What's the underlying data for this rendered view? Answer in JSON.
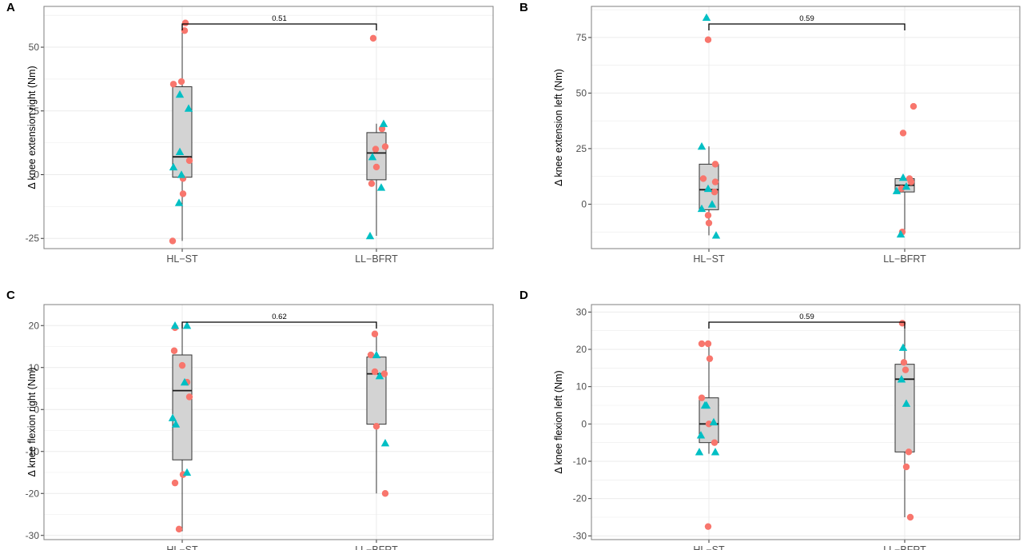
{
  "colors": {
    "circle": "#f8766d",
    "triangle": "#00bfc4",
    "box_fill": "#d3d3d3",
    "grid": "#ebebeb",
    "frame": "#7f7f7f"
  },
  "chart_data": [
    {
      "type": "box",
      "panel": "A",
      "ylabel": "Δ knee extension right (Nm)",
      "categories": [
        "HL−ST",
        "LL−BFRT"
      ],
      "ylim": [
        -29,
        66
      ],
      "yticks": [
        -25,
        0,
        25,
        50
      ],
      "grid": true,
      "pvalue": "0.51",
      "boxes": [
        {
          "q1": -1,
          "median": 7,
          "q3": 34.5,
          "whisker_low": -26,
          "whisker_high": 58
        },
        {
          "q1": -2,
          "median": 8.5,
          "q3": 16.5,
          "whisker_low": -24,
          "whisker_high": 20
        }
      ],
      "points": [
        [
          {
            "shape": "circle",
            "y": 59.5,
            "dx": 0.04
          },
          {
            "shape": "circle",
            "y": 56.5,
            "dx": 0.03
          },
          {
            "shape": "circle",
            "y": 36.5,
            "dx": -0.01
          },
          {
            "shape": "circle",
            "y": 35.5,
            "dx": -0.11
          },
          {
            "shape": "circle",
            "y": 5.5,
            "dx": 0.09
          },
          {
            "shape": "circle",
            "y": -1.5,
            "dx": 0.01
          },
          {
            "shape": "circle",
            "y": -7.5,
            "dx": 0.01
          },
          {
            "shape": "circle",
            "y": -26,
            "dx": -0.12
          },
          {
            "shape": "triangle",
            "y": 31.5,
            "dx": -0.03
          },
          {
            "shape": "triangle",
            "y": 26,
            "dx": 0.08
          },
          {
            "shape": "triangle",
            "y": 9,
            "dx": -0.03
          },
          {
            "shape": "triangle",
            "y": 3,
            "dx": -0.11
          },
          {
            "shape": "triangle",
            "y": 0,
            "dx": -0.01
          },
          {
            "shape": "triangle",
            "y": -11,
            "dx": -0.04
          }
        ],
        [
          {
            "shape": "circle",
            "y": 53.5,
            "dx": -0.04
          },
          {
            "shape": "circle",
            "y": 18,
            "dx": 0.07
          },
          {
            "shape": "circle",
            "y": 11,
            "dx": 0.11
          },
          {
            "shape": "circle",
            "y": 10,
            "dx": -0.01
          },
          {
            "shape": "circle",
            "y": 3,
            "dx": 0.0
          },
          {
            "shape": "circle",
            "y": -3.5,
            "dx": -0.06
          },
          {
            "shape": "triangle",
            "y": 20,
            "dx": 0.09
          },
          {
            "shape": "triangle",
            "y": 7,
            "dx": -0.05
          },
          {
            "shape": "triangle",
            "y": -5,
            "dx": 0.06
          },
          {
            "shape": "triangle",
            "y": -24,
            "dx": -0.08
          }
        ]
      ]
    },
    {
      "type": "box",
      "panel": "B",
      "ylabel": "Δ knee extension left (Nm)",
      "categories": [
        "HL−ST",
        "LL−BFRT"
      ],
      "ylim": [
        -20,
        89
      ],
      "yticks": [
        0,
        25,
        50,
        75
      ],
      "grid": true,
      "pvalue": "0.59",
      "boxes": [
        {
          "q1": -2.5,
          "median": 6.5,
          "q3": 18,
          "whisker_low": -14,
          "whisker_high": 26
        },
        {
          "q1": 5.5,
          "median": 8.5,
          "q3": 11.5,
          "whisker_low": -13,
          "whisker_high": 11.5
        }
      ],
      "points": [
        [
          {
            "shape": "circle",
            "y": 74,
            "dx": -0.01
          },
          {
            "shape": "circle",
            "y": 18,
            "dx": 0.08
          },
          {
            "shape": "circle",
            "y": 11.5,
            "dx": -0.07
          },
          {
            "shape": "circle",
            "y": 10,
            "dx": 0.08
          },
          {
            "shape": "circle",
            "y": 5.5,
            "dx": 0.07
          },
          {
            "shape": "circle",
            "y": -5,
            "dx": -0.01
          },
          {
            "shape": "circle",
            "y": -8.5,
            "dx": 0.0
          },
          {
            "shape": "triangle",
            "y": 84,
            "dx": -0.03
          },
          {
            "shape": "triangle",
            "y": 26,
            "dx": -0.09
          },
          {
            "shape": "triangle",
            "y": 7,
            "dx": -0.01
          },
          {
            "shape": "triangle",
            "y": 0,
            "dx": 0.04
          },
          {
            "shape": "triangle",
            "y": -2,
            "dx": -0.09
          },
          {
            "shape": "triangle",
            "y": -14,
            "dx": 0.09
          }
        ],
        [
          {
            "shape": "circle",
            "y": 44,
            "dx": 0.11
          },
          {
            "shape": "circle",
            "y": 32,
            "dx": -0.02
          },
          {
            "shape": "circle",
            "y": 11.5,
            "dx": 0.06
          },
          {
            "shape": "circle",
            "y": 10,
            "dx": 0.08
          },
          {
            "shape": "circle",
            "y": 7,
            "dx": -0.04
          },
          {
            "shape": "circle",
            "y": -12.5,
            "dx": -0.03
          },
          {
            "shape": "triangle",
            "y": 12,
            "dx": -0.02
          },
          {
            "shape": "triangle",
            "y": 8,
            "dx": 0.02
          },
          {
            "shape": "triangle",
            "y": 6,
            "dx": -0.1
          },
          {
            "shape": "triangle",
            "y": -13.5,
            "dx": -0.05
          }
        ]
      ]
    },
    {
      "type": "box",
      "panel": "C",
      "ylabel": "Δ knee flexion right (Nm)",
      "categories": [
        "HL−ST",
        "LL−BFRT"
      ],
      "ylim": [
        -31,
        25
      ],
      "yticks": [
        -30,
        -20,
        -10,
        0,
        10,
        20
      ],
      "grid": true,
      "pvalue": "0.62",
      "boxes": [
        {
          "q1": -12,
          "median": 4.5,
          "q3": 13,
          "whisker_low": -29,
          "whisker_high": 20
        },
        {
          "q1": -3.5,
          "median": 8.5,
          "q3": 12.5,
          "whisker_low": -20,
          "whisker_high": 18
        }
      ],
      "points": [
        [
          {
            "shape": "circle",
            "y": 19.5,
            "dx": -0.09
          },
          {
            "shape": "circle",
            "y": 14,
            "dx": -0.1
          },
          {
            "shape": "circle",
            "y": 10.5,
            "dx": 0.0
          },
          {
            "shape": "circle",
            "y": 6.5,
            "dx": 0.06
          },
          {
            "shape": "circle",
            "y": 3,
            "dx": 0.09
          },
          {
            "shape": "circle",
            "y": -15.5,
            "dx": 0.01
          },
          {
            "shape": "circle",
            "y": -17.5,
            "dx": -0.09
          },
          {
            "shape": "circle",
            "y": -28.5,
            "dx": -0.04
          },
          {
            "shape": "triangle",
            "y": 20,
            "dx": -0.09
          },
          {
            "shape": "triangle",
            "y": 20,
            "dx": 0.06
          },
          {
            "shape": "triangle",
            "y": 6.5,
            "dx": 0.03
          },
          {
            "shape": "triangle",
            "y": -2,
            "dx": -0.12
          },
          {
            "shape": "triangle",
            "y": -3.5,
            "dx": -0.08
          },
          {
            "shape": "triangle",
            "y": -15,
            "dx": 0.06
          }
        ],
        [
          {
            "shape": "circle",
            "y": 18,
            "dx": -0.02
          },
          {
            "shape": "circle",
            "y": 13,
            "dx": -0.07
          },
          {
            "shape": "circle",
            "y": 9,
            "dx": -0.02
          },
          {
            "shape": "circle",
            "y": 8.5,
            "dx": 0.1
          },
          {
            "shape": "circle",
            "y": -4,
            "dx": 0.0
          },
          {
            "shape": "circle",
            "y": -20,
            "dx": 0.11
          },
          {
            "shape": "triangle",
            "y": 13,
            "dx": 0.0
          },
          {
            "shape": "triangle",
            "y": 8,
            "dx": 0.04
          },
          {
            "shape": "triangle",
            "y": -8,
            "dx": 0.11
          }
        ]
      ]
    },
    {
      "type": "box",
      "panel": "D",
      "ylabel": "Δ knee flexion left (Nm)",
      "categories": [
        "HL−ST",
        "LL−BFRT"
      ],
      "ylim": [
        -31,
        32
      ],
      "yticks": [
        -30,
        -20,
        -10,
        0,
        10,
        20,
        30
      ],
      "grid": true,
      "pvalue": "0.59",
      "boxes": [
        {
          "q1": -5,
          "median": 0,
          "q3": 7,
          "whisker_low": -8,
          "whisker_high": 21
        },
        {
          "q1": -7.5,
          "median": 12,
          "q3": 16,
          "whisker_low": -25,
          "whisker_high": 27
        }
      ],
      "points": [
        [
          {
            "shape": "circle",
            "y": 21.5,
            "dx": -0.09
          },
          {
            "shape": "circle",
            "y": 21.5,
            "dx": -0.01
          },
          {
            "shape": "circle",
            "y": 17.5,
            "dx": 0.01
          },
          {
            "shape": "circle",
            "y": 7,
            "dx": -0.09
          },
          {
            "shape": "circle",
            "y": 0,
            "dx": 0.0
          },
          {
            "shape": "circle",
            "y": -5,
            "dx": 0.07
          },
          {
            "shape": "circle",
            "y": -27.5,
            "dx": -0.01
          },
          {
            "shape": "triangle",
            "y": 5,
            "dx": -0.05
          },
          {
            "shape": "triangle",
            "y": 5,
            "dx": -0.03
          },
          {
            "shape": "triangle",
            "y": 0.5,
            "dx": 0.06
          },
          {
            "shape": "triangle",
            "y": -3,
            "dx": -0.1
          },
          {
            "shape": "triangle",
            "y": -7.5,
            "dx": -0.12
          },
          {
            "shape": "triangle",
            "y": -7.5,
            "dx": 0.08
          }
        ],
        [
          {
            "shape": "circle",
            "y": 27,
            "dx": -0.03
          },
          {
            "shape": "circle",
            "y": 16.5,
            "dx": -0.01
          },
          {
            "shape": "circle",
            "y": 14.5,
            "dx": 0.01
          },
          {
            "shape": "circle",
            "y": -7.5,
            "dx": 0.05
          },
          {
            "shape": "circle",
            "y": -11.5,
            "dx": 0.02
          },
          {
            "shape": "circle",
            "y": -25,
            "dx": 0.07
          },
          {
            "shape": "triangle",
            "y": 20.5,
            "dx": -0.02
          },
          {
            "shape": "triangle",
            "y": 12,
            "dx": -0.04
          },
          {
            "shape": "triangle",
            "y": 5.5,
            "dx": 0.02
          }
        ]
      ]
    }
  ]
}
